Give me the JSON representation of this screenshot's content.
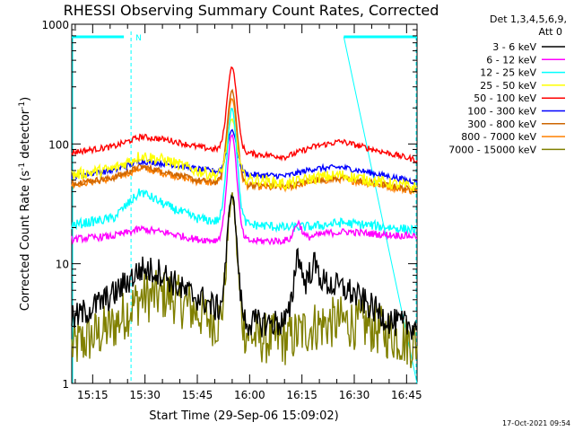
{
  "chart_data": {
    "type": "line",
    "title": "RHESSI Observing Summary Count Rates, Corrected",
    "xlabel": "Start Time (29-Sep-06 15:09:02)",
    "ylabel_main": "Corrected Count Rate (s",
    "ylabel_sup1": "-1",
    "ylabel_mid": " detector",
    "ylabel_sup2": "-1",
    "ylabel_end": ")",
    "y_scale": "log",
    "xlim": [
      "15:09",
      "16:48"
    ],
    "ylim": [
      1,
      1000
    ],
    "x_ticks": [
      "15:15",
      "15:30",
      "15:45",
      "16:00",
      "16:15",
      "16:30",
      "16:45"
    ],
    "y_ticks": [
      "1000",
      "100",
      "10",
      "1"
    ],
    "legend_header_1": "Det 1,3,4,5,6,9,",
    "legend_header_2": "Att 0",
    "legend_position": "right",
    "timestamp": "17-Oct-2021 09:54",
    "night_marker": "N",
    "night_periods": [
      [
        "15:09",
        "15:26"
      ],
      [
        "16:27",
        "16:48"
      ]
    ],
    "series": [
      {
        "name": "3 - 6 keV",
        "color": "#000000",
        "base": [
          [
            0,
            3.4
          ],
          [
            0.12,
            5.5
          ],
          [
            0.2,
            9
          ],
          [
            0.26,
            8.5
          ],
          [
            0.32,
            6
          ],
          [
            0.38,
            5
          ],
          [
            0.44,
            3.8
          ],
          [
            0.5,
            3.2
          ],
          [
            0.54,
            3.2
          ],
          [
            0.58,
            3.2
          ],
          [
            0.6,
            3.2
          ],
          [
            0.62,
            3.4
          ],
          [
            0.64,
            3.8
          ],
          [
            0.66,
            5
          ],
          [
            0.7,
            10
          ],
          [
            0.73,
            7
          ],
          [
            0.76,
            6.5
          ],
          [
            0.8,
            6
          ],
          [
            0.86,
            4.5
          ],
          [
            0.93,
            3.2
          ],
          [
            1,
            3.0
          ]
        ],
        "noise": 0.12,
        "peak": 38,
        "peak2": 12
      },
      {
        "name": "6 - 12 keV",
        "color": "#ff00ff",
        "base": [
          [
            0,
            16
          ],
          [
            0.12,
            17
          ],
          [
            0.2,
            19.5
          ],
          [
            0.28,
            18
          ],
          [
            0.36,
            16
          ],
          [
            0.44,
            15.5
          ],
          [
            0.54,
            15.5
          ],
          [
            0.6,
            15.5
          ],
          [
            0.66,
            16
          ],
          [
            0.7,
            17
          ],
          [
            0.74,
            18
          ],
          [
            0.8,
            18.5
          ],
          [
            0.9,
            17.5
          ],
          [
            1,
            17
          ]
        ],
        "noise": 0.03,
        "peak": 120,
        "peak2": 22
      },
      {
        "name": "12 - 25 keV",
        "color": "#00ffff",
        "base": [
          [
            0,
            21
          ],
          [
            0.12,
            24
          ],
          [
            0.2,
            40
          ],
          [
            0.28,
            30
          ],
          [
            0.36,
            24
          ],
          [
            0.44,
            22
          ],
          [
            0.54,
            21
          ],
          [
            0.62,
            20
          ],
          [
            0.7,
            20.5
          ],
          [
            0.78,
            22
          ],
          [
            0.86,
            21
          ],
          [
            1,
            19
          ]
        ],
        "noise": 0.04,
        "peak": 200,
        "peak2": 18
      },
      {
        "name": "25 - 50 keV",
        "color": "#ffff00",
        "base": [
          [
            0,
            55
          ],
          [
            0.12,
            62
          ],
          [
            0.2,
            80
          ],
          [
            0.28,
            72
          ],
          [
            0.36,
            60
          ],
          [
            0.44,
            53
          ],
          [
            0.54,
            50
          ],
          [
            0.62,
            46
          ],
          [
            0.7,
            52
          ],
          [
            0.78,
            55
          ],
          [
            0.86,
            50
          ],
          [
            1,
            43
          ]
        ],
        "noise": 0.05,
        "peak": 160,
        "peak2": 0
      },
      {
        "name": "50 - 100 keV",
        "color": "#ff0000",
        "base": [
          [
            0,
            85
          ],
          [
            0.12,
            95
          ],
          [
            0.2,
            115
          ],
          [
            0.28,
            108
          ],
          [
            0.36,
            95
          ],
          [
            0.44,
            88
          ],
          [
            0.54,
            82
          ],
          [
            0.62,
            78
          ],
          [
            0.7,
            95
          ],
          [
            0.78,
            105
          ],
          [
            0.86,
            92
          ],
          [
            1,
            73
          ]
        ],
        "noise": 0.025,
        "peak": 440,
        "peak2": 0
      },
      {
        "name": "100 - 300 keV",
        "color": "#0000ff",
        "base": [
          [
            0,
            54
          ],
          [
            0.12,
            60
          ],
          [
            0.2,
            72
          ],
          [
            0.28,
            68
          ],
          [
            0.36,
            62
          ],
          [
            0.44,
            58
          ],
          [
            0.54,
            55
          ],
          [
            0.62,
            54
          ],
          [
            0.7,
            62
          ],
          [
            0.78,
            64
          ],
          [
            0.86,
            58
          ],
          [
            1,
            48
          ]
        ],
        "noise": 0.025,
        "peak": 130,
        "peak2": 0
      },
      {
        "name": "300 - 800 keV",
        "color": "#cd6600",
        "base": [
          [
            0,
            47
          ],
          [
            0.12,
            52
          ],
          [
            0.2,
            65
          ],
          [
            0.28,
            58
          ],
          [
            0.36,
            50
          ],
          [
            0.44,
            47
          ],
          [
            0.54,
            45
          ],
          [
            0.62,
            44
          ],
          [
            0.7,
            50
          ],
          [
            0.78,
            52
          ],
          [
            0.86,
            48
          ],
          [
            1,
            41
          ]
        ],
        "noise": 0.025,
        "peak": 280,
        "peak2": 0
      },
      {
        "name": "800 - 7000 keV",
        "color": "#ff8000",
        "base": [
          [
            0,
            46
          ],
          [
            0.12,
            51
          ],
          [
            0.2,
            63
          ],
          [
            0.28,
            56
          ],
          [
            0.36,
            49
          ],
          [
            0.44,
            46
          ],
          [
            0.54,
            44
          ],
          [
            0.62,
            43
          ],
          [
            0.7,
            49
          ],
          [
            0.78,
            51
          ],
          [
            0.86,
            47
          ],
          [
            1,
            40
          ]
        ],
        "noise": 0.03,
        "peak": 240,
        "peak2": 0
      },
      {
        "name": "7000 - 15000 keV",
        "color": "#808000",
        "base": [
          [
            0,
            2.0
          ],
          [
            0.12,
            3
          ],
          [
            0.2,
            5.2
          ],
          [
            0.28,
            5.5
          ],
          [
            0.36,
            4
          ],
          [
            0.44,
            3
          ],
          [
            0.54,
            2.4
          ],
          [
            0.62,
            2.3
          ],
          [
            0.7,
            3
          ],
          [
            0.78,
            3.3
          ],
          [
            0.86,
            3
          ],
          [
            1,
            2.1
          ]
        ],
        "noise": 0.22,
        "peak": 36,
        "peak2": 0
      }
    ]
  }
}
